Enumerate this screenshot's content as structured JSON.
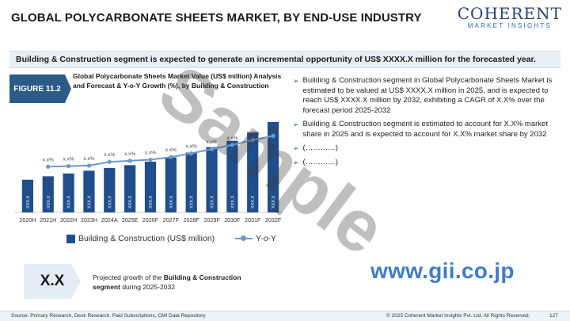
{
  "header": {
    "title": "GLOBAL POLYCARBONATE SHEETS MARKET, BY END-USE INDUSTRY",
    "logo_main": "COHERENT",
    "logo_sub": "MARKET INSIGHTS"
  },
  "banner": {
    "text": "Building & Construction segment is expected to generate an incremental opportunity of US$ XXXX.X million for the forecasted year."
  },
  "figure": {
    "label": "FIGURE 11.2",
    "description": "Global Polycarbonate Sheets Market Value (US$ million) Analysis and Forecast & Y-o-Y Growth (%), by Building & Construction"
  },
  "chart_data": {
    "type": "bar",
    "categories": [
      "2020H",
      "2021H",
      "2022H",
      "2023H",
      "2024A",
      "2025E",
      "2026F",
      "2027F",
      "2028F",
      "2029F",
      "2030F",
      "2031F",
      "2032F"
    ],
    "series": [
      {
        "name": "Building & Construction (US$ million)",
        "type": "bar",
        "color": "#1f4e8c",
        "values": [
          47,
          52,
          56,
          60,
          64,
          68,
          73,
          79,
          86,
          94,
          103,
          115,
          130
        ],
        "value_labels": [
          "XXX.X",
          "XXX.X",
          "XXX.X",
          "XXX.X",
          "XXX.X",
          "XXX.X",
          "XXX.X",
          "XXX.X",
          "XXX.X",
          "XXX.X",
          "XXX.X",
          "XXX.X",
          "XXX.X"
        ]
      },
      {
        "name": "Y-o-Y",
        "type": "line",
        "color": "#6c9ad0",
        "values": [
          null,
          22,
          23,
          24,
          31,
          33,
          35,
          40,
          47,
          55,
          63,
          72,
          80
        ],
        "value_labels": [
          "",
          "x.x%",
          "x.x%",
          "x.x%",
          "x.x%",
          "x.x%",
          "x.x%",
          "x.x%",
          "x.x%",
          "x.x%",
          "x.x%",
          "x.x%",
          "x.x%"
        ]
      }
    ],
    "grid": false,
    "legend": "bottom"
  },
  "legend": {
    "bar_label": "Building & Construction (US$ million)",
    "line_label": "Y-o-Y"
  },
  "projection": {
    "value": "X.X",
    "text_pre": "Projected growth of the ",
    "text_bold": "Building & Construction segment",
    "text_post": " during 2025-2032"
  },
  "bullets": [
    "Building & Construction segment in Global Polycarbonate Sheets Market is estimated to be valued at US$ XXXX.X million in 2025, and is expected to reach US$ XXXX.X million by 2032, exhibiting a CAGR of X.X% over the forecast period 2025-2032",
    "Building & Construction segment is estimated to account for X.X% market share in 2025 and is expected to account for X.X% market share by 2032",
    "(…………)",
    "(…………)"
  ],
  "watermark": "Sample",
  "gii_url": "www.gii.co.jp",
  "footer": {
    "source": "Source: Primary Research, Desk Research, Paid Subscriptions, CMI Data Repository",
    "copyright": "© 2025 Coherent Market Insights Pvt. Ltd. All Rights Reserved.",
    "page": "127"
  },
  "colors": {
    "brand_dark": "#2c5b88",
    "bar": "#1f4e8c",
    "line": "#6c9ad0",
    "gii": "#3f7cc9"
  }
}
